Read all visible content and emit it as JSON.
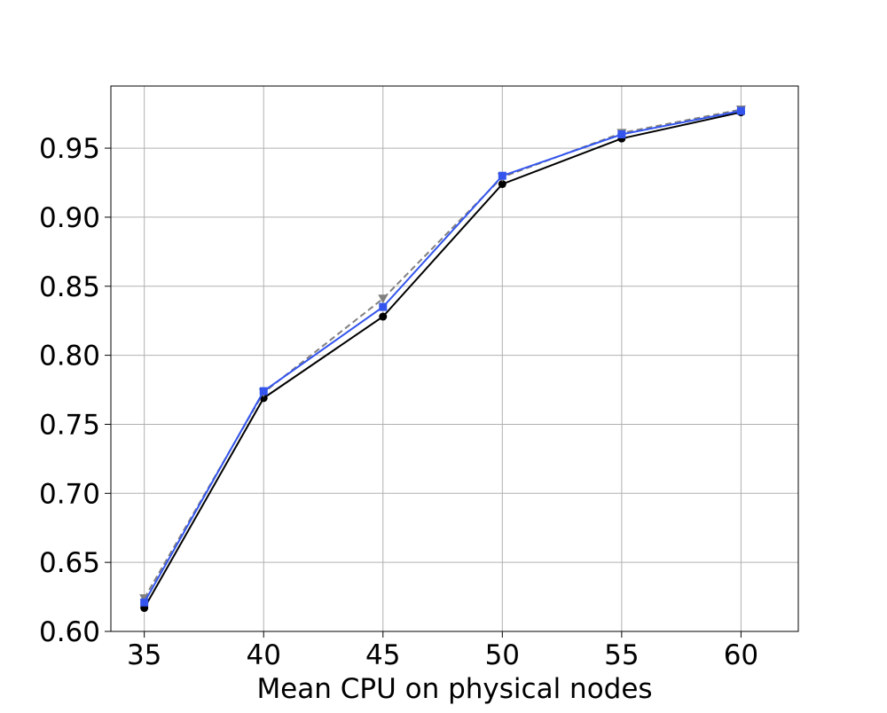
{
  "chart_data": {
    "type": "line",
    "title": "",
    "xlabel": "Mean CPU on physical nodes",
    "ylabel": "",
    "x": [
      35,
      40,
      45,
      50,
      55,
      60
    ],
    "xlim": [
      33.6,
      62.4
    ],
    "ylim": [
      0.6,
      0.995
    ],
    "x_ticks": [
      35,
      40,
      45,
      50,
      55,
      60
    ],
    "y_ticks": [
      0.6,
      0.65,
      0.7,
      0.75,
      0.8,
      0.85,
      0.9,
      0.95
    ],
    "x_tick_labels": [
      "35",
      "40",
      "45",
      "50",
      "55",
      "60"
    ],
    "y_tick_labels": [
      "0.60",
      "0.65",
      "0.70",
      "0.75",
      "0.80",
      "0.85",
      "0.90",
      "0.95"
    ],
    "grid": true,
    "legend": "none",
    "series": [
      {
        "values": [
          0.617,
          0.769,
          0.828,
          0.924,
          0.957,
          0.976
        ],
        "color": "#000000",
        "line_style": "solid",
        "marker": "circle"
      },
      {
        "values": [
          0.624,
          0.773,
          0.841,
          0.929,
          0.961,
          0.978
        ],
        "color": "#808080",
        "line_style": "dashed",
        "marker": "triangle-down"
      },
      {
        "values": [
          0.621,
          0.774,
          0.835,
          0.93,
          0.96,
          0.977
        ],
        "color": "#3355ee",
        "line_style": "solid",
        "marker": "square"
      }
    ]
  }
}
